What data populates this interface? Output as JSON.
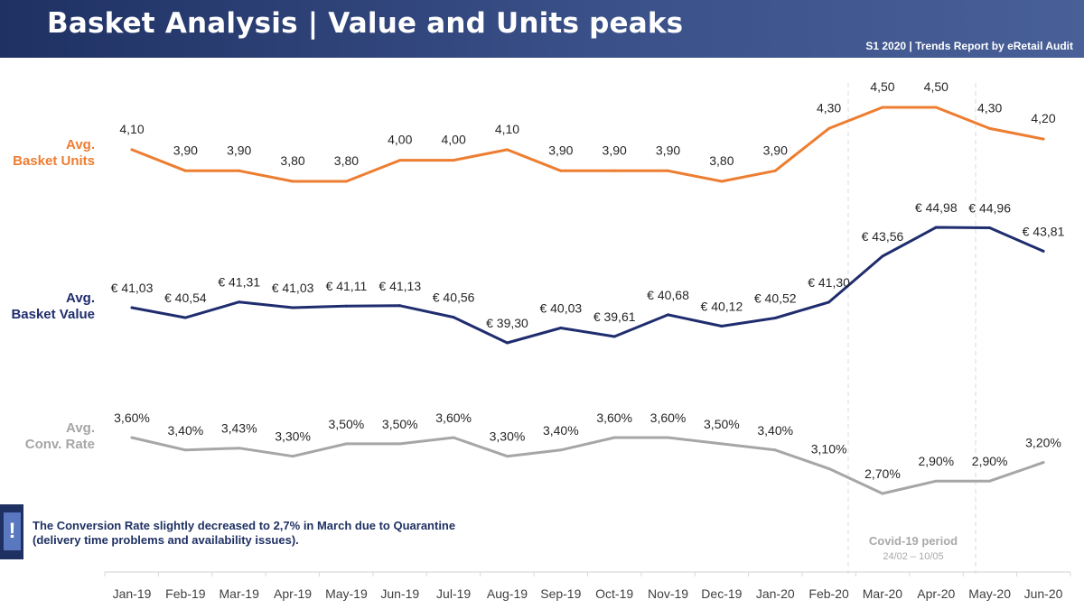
{
  "header": {
    "title": "Basket Analysis | Value and Units peaks",
    "subtitle": "S1 2020 | Trends Report by eRetail Audit"
  },
  "labels": {
    "units_line1": "Avg.",
    "units_line2": "Basket Units",
    "value_line1": "Avg.",
    "value_line2": "Basket Value",
    "conv_line1": "Avg.",
    "conv_line2": "Conv. Rate"
  },
  "colors": {
    "units": "#ed7d31",
    "value": "#1f2d6e",
    "conv": "#a6a6a6",
    "axis": "#d9d9d9",
    "period_line": "#d6dce6"
  },
  "callout": {
    "icon": "!",
    "line1": "The Conversion Rate slightly decreased to 2,7% in March due to Quarantine",
    "line2": "(delivery time problems and availability issues)."
  },
  "covid": {
    "title": "Covid-19 period",
    "dates": "24/02 – 10/05"
  },
  "chart_data": {
    "type": "line",
    "categories": [
      "Jan-19",
      "Feb-19",
      "Mar-19",
      "Apr-19",
      "May-19",
      "Jun-19",
      "Jul-19",
      "Aug-19",
      "Sep-19",
      "Oct-19",
      "Nov-19",
      "Dec-19",
      "Jan-20",
      "Feb-20",
      "Mar-20",
      "Apr-20",
      "May-20",
      "Jun-20"
    ],
    "series": [
      {
        "name": "Avg. Basket Units",
        "key": "units",
        "values": [
          4.1,
          3.9,
          3.9,
          3.8,
          3.8,
          4.0,
          4.0,
          4.1,
          3.9,
          3.9,
          3.9,
          3.8,
          3.9,
          4.3,
          4.5,
          4.5,
          4.3,
          4.2
        ],
        "labels": [
          "4,10",
          "3,90",
          "3,90",
          "3,80",
          "3,80",
          "4,00",
          "4,00",
          "4,10",
          "3,90",
          "3,90",
          "3,90",
          "3,80",
          "3,90",
          "4,30",
          "4,50",
          "4,50",
          "4,30",
          "4,20"
        ]
      },
      {
        "name": "Avg. Basket Value",
        "key": "value",
        "values": [
          41.03,
          40.54,
          41.31,
          41.03,
          41.11,
          41.13,
          40.56,
          39.3,
          40.03,
          39.61,
          40.68,
          40.12,
          40.52,
          41.3,
          43.56,
          44.98,
          44.96,
          43.81
        ],
        "labels": [
          "€ 41,03",
          "€ 40,54",
          "€ 41,31",
          "€ 41,03",
          "€ 41,11",
          "€ 41,13",
          "€ 40,56",
          "€ 39,30",
          "€ 40,03",
          "€ 39,61",
          "€ 40,68",
          "€ 40,12",
          "€ 40,52",
          "€ 41,30",
          "€ 43,56",
          "€ 44,98",
          "€ 44,96",
          "€ 43,81"
        ]
      },
      {
        "name": "Avg. Conv. Rate",
        "key": "conv",
        "values": [
          3.6,
          3.4,
          3.43,
          3.3,
          3.5,
          3.5,
          3.6,
          3.3,
          3.4,
          3.6,
          3.6,
          3.5,
          3.4,
          3.1,
          2.7,
          2.9,
          2.9,
          3.2
        ],
        "labels": [
          "3,60%",
          "3,40%",
          "3,43%",
          "3,30%",
          "3,50%",
          "3,50%",
          "3,60%",
          "3,30%",
          "3,40%",
          "3,60%",
          "3,60%",
          "3,50%",
          "3,40%",
          "3,10%",
          "2,70%",
          "2,90%",
          "2,90%",
          "3,20%"
        ]
      }
    ],
    "highlight_period": {
      "label": "Covid-19 period",
      "start": "24/02",
      "end": "10/05"
    },
    "legend": "none",
    "grid": false
  }
}
